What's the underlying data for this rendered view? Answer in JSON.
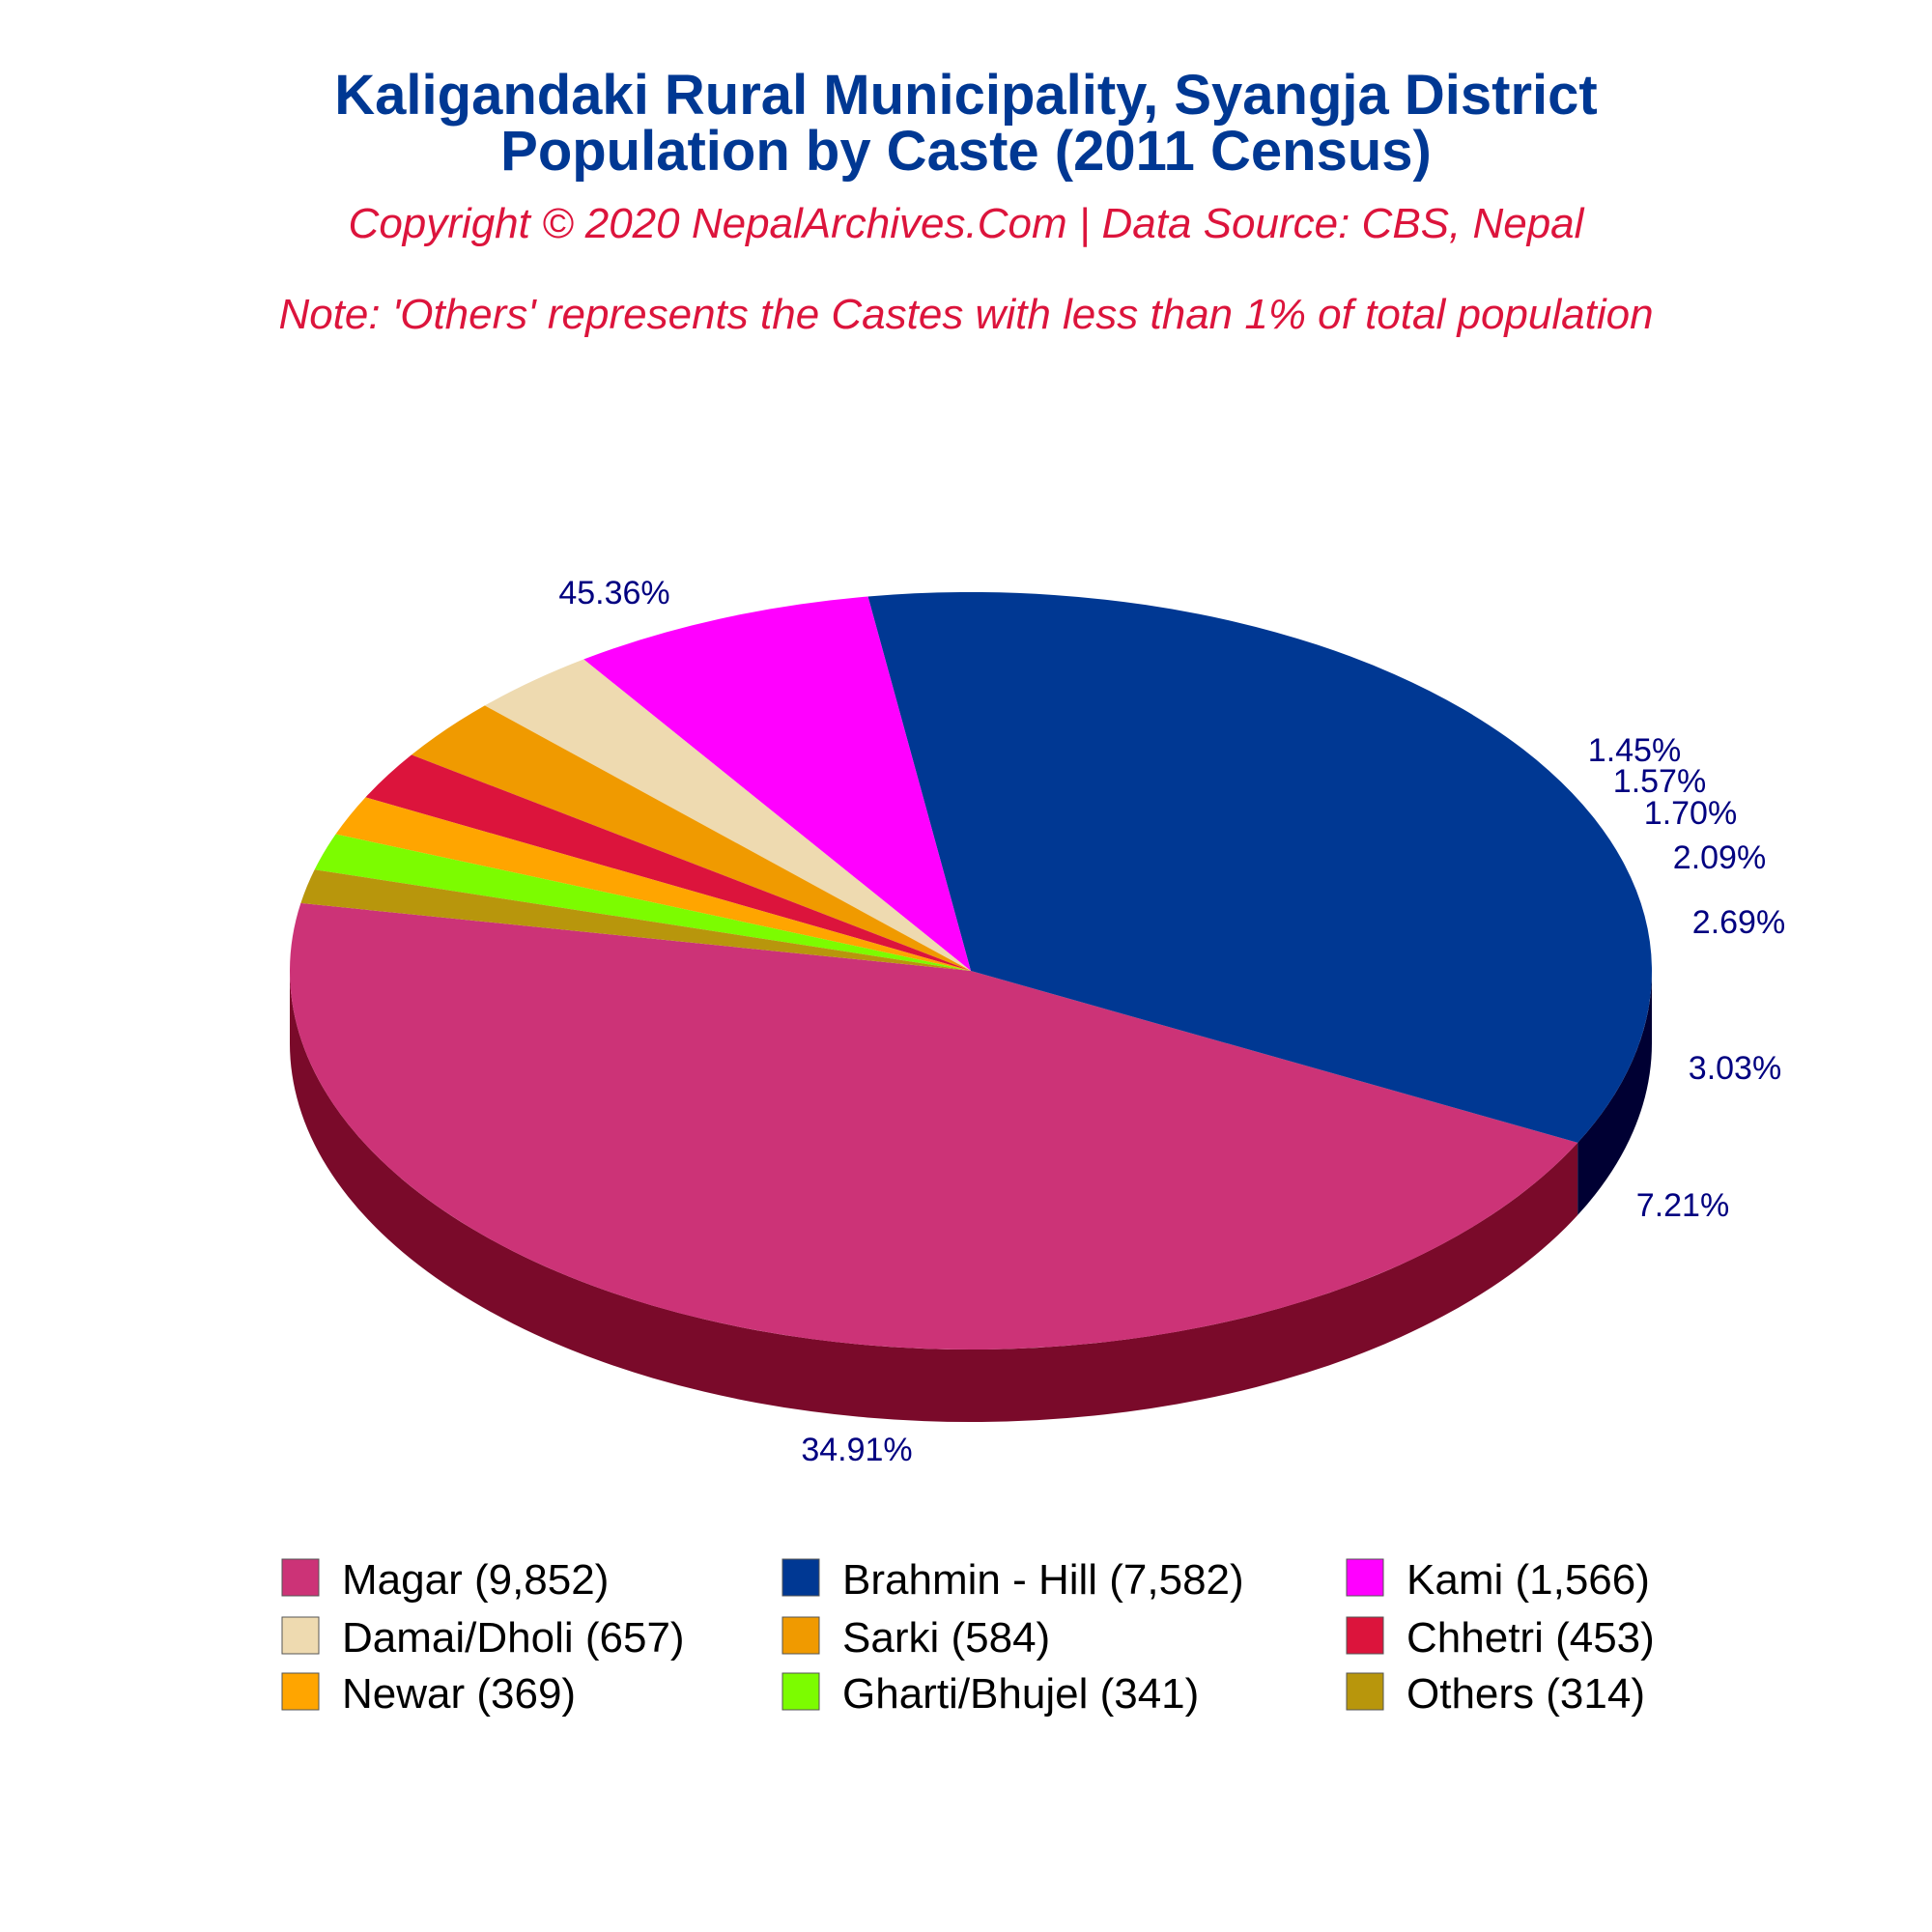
{
  "chart_data": {
    "type": "pie",
    "title": "Kaligandaki Rural Municipality, Syangja District",
    "subtitle": "Population by Caste (2011 Census)",
    "copyright": "Copyright © 2020 NepalArchives.Com | Data Source: CBS, Nepal",
    "note": "Note: 'Others' represents the Castes with less than 1% of total population",
    "slices": [
      {
        "name": "Magar",
        "value": 9852,
        "percent": "45.36%",
        "legend": "Magar (9,852)",
        "color": "#CC3377",
        "side": "#7a0a2a"
      },
      {
        "name": "Brahmin - Hill",
        "value": 7582,
        "percent": "34.91%",
        "legend": "Brahmin - Hill (7,582)",
        "color": "#003893",
        "side": "#000033"
      },
      {
        "name": "Kami",
        "value": 1566,
        "percent": "7.21%",
        "legend": "Kami (1,566)",
        "color": "#FF00FF",
        "side": "#aa00aa"
      },
      {
        "name": "Damai/Dholi",
        "value": 657,
        "percent": "3.03%",
        "legend": "Damai/Dholi (657)",
        "color": "#EEDAB0",
        "side": "#8a7a55"
      },
      {
        "name": "Sarki",
        "value": 584,
        "percent": "2.69%",
        "legend": "Sarki (584)",
        "color": "#F09A00",
        "side": "#8a5a00"
      },
      {
        "name": "Chhetri",
        "value": 453,
        "percent": "2.09%",
        "legend": "Chhetri (453)",
        "color": "#DC143C",
        "side": "#7a0a20"
      },
      {
        "name": "Newar",
        "value": 369,
        "percent": "1.70%",
        "legend": "Newar (369)",
        "color": "#FFA500",
        "side": "#8a5a00"
      },
      {
        "name": "Gharti/Bhujel",
        "value": 341,
        "percent": "1.57%",
        "legend": "Gharti/Bhujel (341)",
        "color": "#7CFC00",
        "side": "#3a7a00"
      },
      {
        "name": "Others",
        "value": 314,
        "percent": "1.45%",
        "legend": "Others (314)",
        "color": "#B8960C",
        "side": "#6a5500"
      }
    ],
    "legend_placement": "bottom",
    "colors": {
      "title": "#003893",
      "subtitle": "#DC143C",
      "labels": "#000080"
    }
  }
}
